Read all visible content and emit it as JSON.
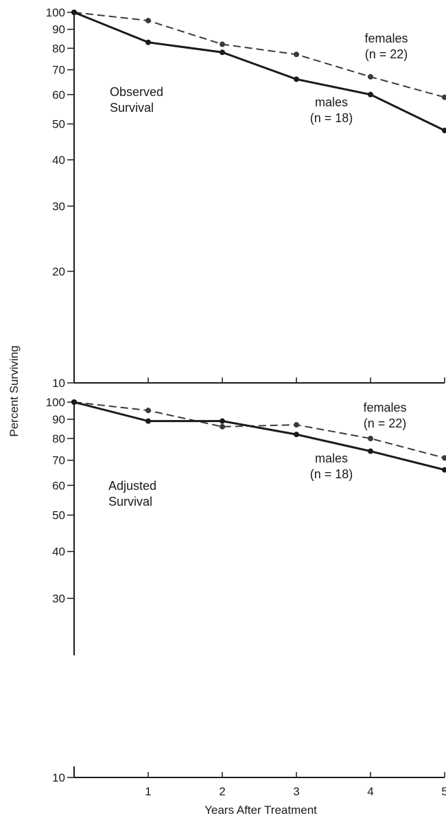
{
  "chart_data": [
    {
      "type": "line",
      "panel_label": [
        "Observed",
        "Survival"
      ],
      "x": [
        0,
        1,
        2,
        3,
        4,
        5
      ],
      "series": [
        {
          "name": "females",
          "n_label": "(n = 22)",
          "values": [
            100,
            95,
            82,
            77,
            67,
            59
          ],
          "style": "dashed"
        },
        {
          "name": "males",
          "n_label": "(n = 18)",
          "values": [
            100,
            83,
            78,
            66,
            60,
            48
          ],
          "style": "solid"
        }
      ],
      "xlim": [
        0,
        5
      ],
      "ylim": [
        10,
        100
      ],
      "yscale": "log",
      "yticks": [
        10,
        20,
        30,
        40,
        50,
        60,
        70,
        80,
        90,
        100
      ],
      "grid": false
    },
    {
      "type": "line",
      "panel_label": [
        "Adjusted",
        "Survival"
      ],
      "x": [
        0,
        1,
        2,
        3,
        4,
        5
      ],
      "series": [
        {
          "name": "females",
          "n_label": "(n = 22)",
          "values": [
            100,
            95,
            86,
            87,
            80,
            71
          ],
          "style": "dashed"
        },
        {
          "name": "males",
          "n_label": "(n = 18)",
          "values": [
            100,
            89,
            89,
            82,
            74,
            66
          ],
          "style": "solid"
        }
      ],
      "xlim": [
        0,
        5
      ],
      "ylim": [
        10,
        100
      ],
      "yscale": "log",
      "yticks": [
        10,
        30,
        40,
        50,
        60,
        70,
        80,
        90,
        100
      ],
      "xticks": [
        1,
        2,
        3,
        4,
        5
      ],
      "grid": false
    }
  ],
  "axes": {
    "ylabel": "Percent Surviving",
    "xlabel": "Years After Treatment"
  }
}
